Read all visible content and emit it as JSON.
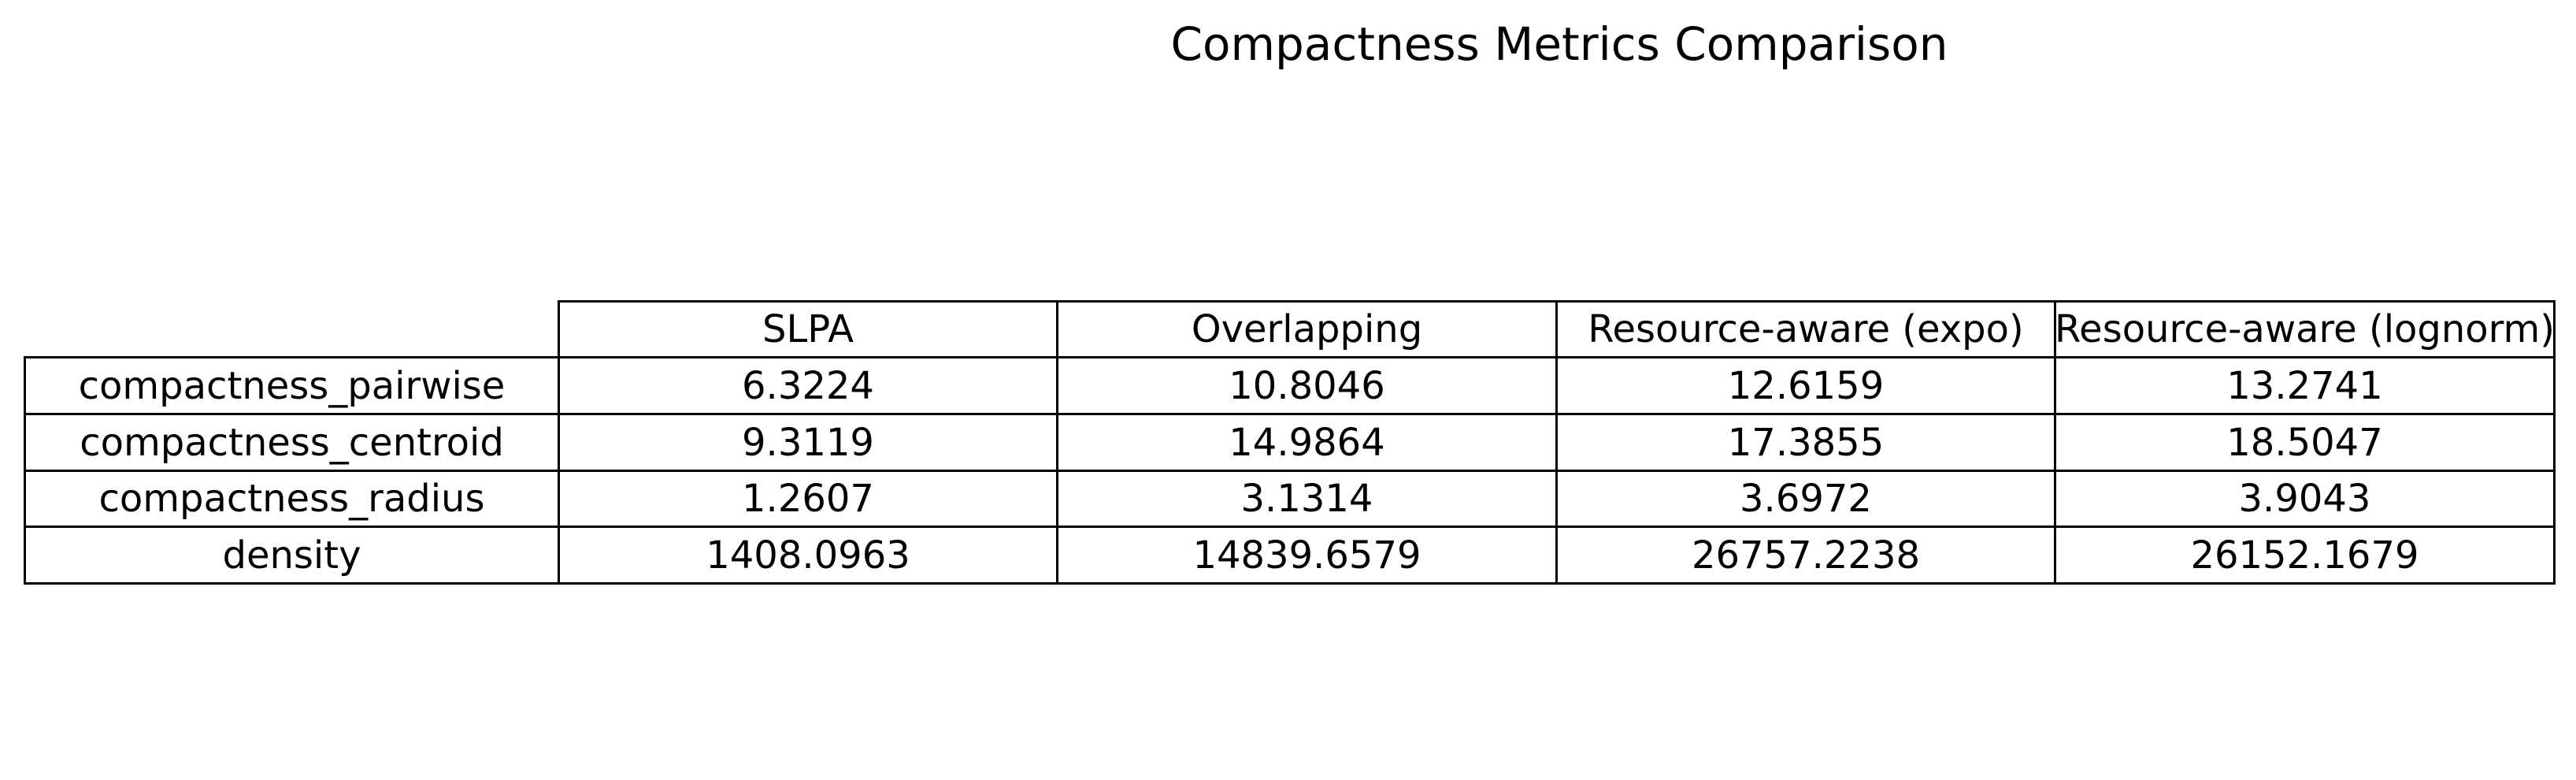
{
  "chart_data": {
    "type": "table",
    "title": "Compactness Metrics Comparison",
    "columns": [
      "SLPA",
      "Overlapping",
      "Resource-aware (expo)",
      "Resource-aware (lognorm)"
    ],
    "rows": [
      {
        "label": "compactness_pairwise",
        "values": [
          "6.3224",
          "10.8046",
          "12.6159",
          "13.2741"
        ]
      },
      {
        "label": "compactness_centroid",
        "values": [
          "9.3119",
          "14.9864",
          "17.3855",
          "18.5047"
        ]
      },
      {
        "label": "compactness_radius",
        "values": [
          "1.2607",
          "3.1314",
          "3.6972",
          "3.9043"
        ]
      },
      {
        "label": "density",
        "values": [
          "1408.0963",
          "14839.6579",
          "26757.2238",
          "26152.1679"
        ]
      }
    ]
  }
}
